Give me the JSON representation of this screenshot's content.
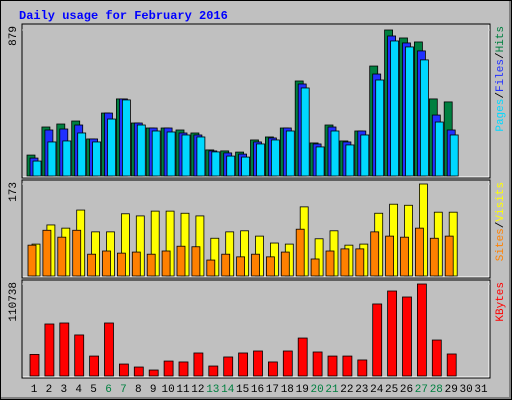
{
  "chart_data": [
    {
      "type": "bar",
      "title": "Daily usage for February 2016",
      "ylim": [
        0,
        879
      ],
      "yticks": [
        879
      ],
      "legend_separator": "/",
      "series": [
        {
          "name": "Hits",
          "color": "#008040",
          "values": [
            126,
            295,
            313,
            331,
            223,
            379,
            464,
            319,
            289,
            289,
            277,
            259,
            157,
            151,
            144,
            217,
            235,
            289,
            572,
            199,
            307,
            211,
            271,
            662,
            879,
            831,
            807,
            464,
            446,
            null,
            null
          ]
        },
        {
          "name": "Files",
          "color": "#2030ff",
          "values": [
            108,
            277,
            283,
            307,
            223,
            379,
            464,
            319,
            289,
            289,
            259,
            247,
            151,
            139,
            132,
            205,
            229,
            289,
            554,
            193,
            295,
            205,
            271,
            614,
            843,
            801,
            753,
            367,
            277,
            null,
            null
          ]
        },
        {
          "name": "Pages",
          "color": "#00d8ff",
          "values": [
            90,
            205,
            211,
            259,
            205,
            343,
            458,
            307,
            271,
            265,
            247,
            235,
            145,
            120,
            114,
            193,
            217,
            271,
            530,
            175,
            271,
            187,
            247,
            578,
            813,
            777,
            699,
            325,
            247,
            null,
            null
          ]
        }
      ]
    },
    {
      "type": "bar",
      "ylim": [
        0,
        173
      ],
      "yticks": [
        173
      ],
      "legend_separator": "/",
      "series": [
        {
          "name": "Visits",
          "color": "#ffff00",
          "values": [
            60,
            96,
            90,
            124,
            83,
            83,
            117,
            113,
            122,
            122,
            118,
            113,
            71,
            83,
            85,
            75,
            62,
            60,
            130,
            70,
            85,
            58,
            60,
            118,
            135,
            133,
            173,
            120,
            120,
            null,
            null
          ]
        },
        {
          "name": "Sites",
          "color": "#ff8000",
          "values": [
            58,
            86,
            73,
            86,
            41,
            47,
            43,
            45,
            41,
            47,
            56,
            55,
            30,
            41,
            36,
            41,
            36,
            45,
            88,
            32,
            47,
            51,
            51,
            83,
            75,
            73,
            90,
            71,
            75,
            null,
            null
          ]
        }
      ]
    },
    {
      "type": "bar",
      "ylim": [
        0,
        110738
      ],
      "yticks": [
        110738
      ],
      "categories": [
        "1",
        "2",
        "3",
        "4",
        "5",
        "6",
        "7",
        "8",
        "9",
        "10",
        "11",
        "12",
        "13",
        "14",
        "15",
        "16",
        "17",
        "18",
        "19",
        "20",
        "21",
        "22",
        "23",
        "24",
        "25",
        "26",
        "27",
        "28",
        "29",
        "30",
        "31"
      ],
      "category_colors": [
        "#000",
        "#000",
        "#000",
        "#000",
        "#000",
        "#008040",
        "#008040",
        "#000",
        "#000",
        "#000",
        "#000",
        "#000",
        "#008040",
        "#008040",
        "#000",
        "#000",
        "#000",
        "#000",
        "#000",
        "#008040",
        "#008040",
        "#000",
        "#000",
        "#000",
        "#000",
        "#000",
        "#008040",
        "#008040",
        "#000",
        "#000",
        "#000"
      ],
      "series": [
        {
          "name": "KBytes",
          "color": "#ff0000",
          "values": [
            26000,
            62600,
            63800,
            49400,
            24000,
            63800,
            14400,
            10800,
            7200,
            18000,
            16900,
            27700,
            12000,
            22900,
            27700,
            30100,
            16900,
            30100,
            45700,
            28900,
            24000,
            24000,
            19300,
            86700,
            102300,
            95100,
            110738,
            43300,
            26500,
            null,
            null
          ]
        }
      ]
    }
  ]
}
